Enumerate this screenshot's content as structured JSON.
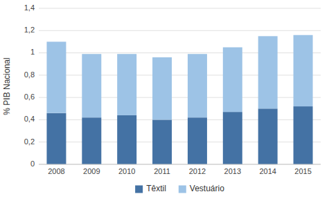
{
  "chart_data": {
    "type": "bar",
    "stacked": true,
    "categories": [
      "2008",
      "2009",
      "2010",
      "2011",
      "2012",
      "2013",
      "2014",
      "2015"
    ],
    "series": [
      {
        "name": "Têxtil",
        "color": "#4472A4",
        "values": [
          0.46,
          0.42,
          0.44,
          0.4,
          0.42,
          0.47,
          0.5,
          0.52
        ]
      },
      {
        "name": "Vestuário",
        "color": "#9DC3E6",
        "values": [
          0.64,
          0.57,
          0.55,
          0.56,
          0.57,
          0.58,
          0.65,
          0.64
        ]
      }
    ],
    "ylabel": "% PIB Nacional",
    "ylim": [
      0,
      1.4
    ],
    "yticks": [
      0,
      {
        "value": 0.2,
        "label": "0,2"
      },
      {
        "value": 0.4,
        "label": "0,4"
      },
      {
        "value": 0.6,
        "label": "0,6"
      },
      {
        "value": 0.8,
        "label": "0,8"
      },
      1,
      {
        "value": 1.2,
        "label": "1,2"
      },
      {
        "value": 1.4,
        "label": "1,4"
      }
    ],
    "grid": true,
    "legend": "bottom"
  }
}
